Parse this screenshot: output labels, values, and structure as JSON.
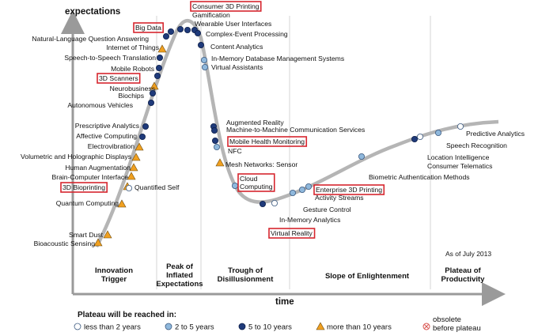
{
  "axis": {
    "y_label": "expectations",
    "x_label": "time"
  },
  "as_of": "As of July 2013",
  "phases": [
    {
      "lines": [
        "Innovation",
        "Trigger"
      ]
    },
    {
      "lines": [
        "Peak of",
        "Inflated",
        "Expectations"
      ]
    },
    {
      "lines": [
        "Trough of",
        "Disillusionment"
      ]
    },
    {
      "lines": [
        "Slope of Enlightenment"
      ]
    },
    {
      "lines": [
        "Plateau of",
        "Productivity"
      ]
    }
  ],
  "legend": {
    "title": "Plateau will be reached in:",
    "items": [
      {
        "key": "lt2",
        "label": "less than 2 years"
      },
      {
        "key": "2to5",
        "label": "2 to 5 years"
      },
      {
        "key": "5to10",
        "label": "5 to 10 years"
      },
      {
        "key": "gt10",
        "label": "more than 10 years"
      },
      {
        "key": "obsolete",
        "label": "obsolete\nbefore plateau"
      }
    ]
  },
  "colors": {
    "curve": "#b5b5b5",
    "lt2": "#ffffff",
    "2to5": "#8fb8dc",
    "5to10": "#1f3a7a",
    "gt10": "#f0a020",
    "obsolete": "#d9534f",
    "highlight": "#d6262e"
  },
  "technologies": [
    {
      "name": "Consumer 3D Printing",
      "category": "5to10",
      "highlighted": true
    },
    {
      "name": "Gamification",
      "category": "5to10",
      "highlighted": false
    },
    {
      "name": "Big Data",
      "category": "5to10",
      "highlighted": true
    },
    {
      "name": "Wearable User Interfaces",
      "category": "5to10",
      "highlighted": false
    },
    {
      "name": "Complex-Event Processing",
      "category": "5to10",
      "highlighted": false
    },
    {
      "name": "Natural-Language Question Answering",
      "category": "5to10",
      "highlighted": false
    },
    {
      "name": "Internet of Things",
      "category": "gt10",
      "highlighted": false
    },
    {
      "name": "Content Analytics",
      "category": "5to10",
      "highlighted": false
    },
    {
      "name": "Speech-to-Speech Translation",
      "category": "5to10",
      "highlighted": false
    },
    {
      "name": "In-Memory Database Management Systems",
      "category": "2to5",
      "highlighted": false
    },
    {
      "name": "Virtual Assistants",
      "category": "2to5",
      "highlighted": false
    },
    {
      "name": "Mobile Robots",
      "category": "5to10",
      "highlighted": false
    },
    {
      "name": "3D Scanners",
      "category": "5to10",
      "highlighted": true
    },
    {
      "name": "Neurobusiness",
      "category": "gt10",
      "highlighted": false
    },
    {
      "name": "Biochips",
      "category": "5to10",
      "highlighted": false
    },
    {
      "name": "Autonomous Vehicles",
      "category": "5to10",
      "highlighted": false
    },
    {
      "name": "Prescriptive Analytics",
      "category": "5to10",
      "highlighted": false
    },
    {
      "name": "Affective Computing",
      "category": "5to10",
      "highlighted": false
    },
    {
      "name": "Electrovibration",
      "category": "gt10",
      "highlighted": false
    },
    {
      "name": "Volumetric and Holographic Displays",
      "category": "gt10",
      "highlighted": false
    },
    {
      "name": "Human Augmentation",
      "category": "gt10",
      "highlighted": false
    },
    {
      "name": "Brain-Computer Interface",
      "category": "gt10",
      "highlighted": false
    },
    {
      "name": "3D Bioprinting",
      "category": "gt10",
      "highlighted": true
    },
    {
      "name": "Quantified Self",
      "category": "lt2",
      "highlighted": false
    },
    {
      "name": "Quantum Computing",
      "category": "gt10",
      "highlighted": false
    },
    {
      "name": "Smart Dust",
      "category": "gt10",
      "highlighted": false
    },
    {
      "name": "Bioacoustic Sensing",
      "category": "gt10",
      "highlighted": false
    },
    {
      "name": "Augmented Reality",
      "category": "5to10",
      "highlighted": false
    },
    {
      "name": "Machine-to-Machine Communication Services",
      "category": "5to10",
      "highlighted": false
    },
    {
      "name": "Mobile Health Monitoring",
      "category": "5to10",
      "highlighted": true
    },
    {
      "name": "NFC",
      "category": "2to5",
      "highlighted": false
    },
    {
      "name": "Mesh Networks: Sensor",
      "category": "gt10",
      "highlighted": false
    },
    {
      "name": "Cloud Computing",
      "category": "2to5",
      "highlighted": true
    },
    {
      "name": "In-Memory Analytics",
      "category": "lt2",
      "highlighted": false
    },
    {
      "name": "Virtual Reality",
      "category": "5to10",
      "highlighted": true
    },
    {
      "name": "Gesture Control",
      "category": "2to5",
      "highlighted": false
    },
    {
      "name": "Activity Streams",
      "category": "2to5",
      "highlighted": false
    },
    {
      "name": "Enterprise 3D Printing",
      "category": "2to5",
      "highlighted": true
    },
    {
      "name": "Biometric Authentication Methods",
      "category": "2to5",
      "highlighted": false
    },
    {
      "name": "Location Intelligence",
      "category": "5to10",
      "highlighted": false
    },
    {
      "name": "Consumer Telematics",
      "category": "lt2",
      "highlighted": false
    },
    {
      "name": "Speech Recognition",
      "category": "2to5",
      "highlighted": false
    },
    {
      "name": "Predictive Analytics",
      "category": "lt2",
      "highlighted": false
    }
  ]
}
